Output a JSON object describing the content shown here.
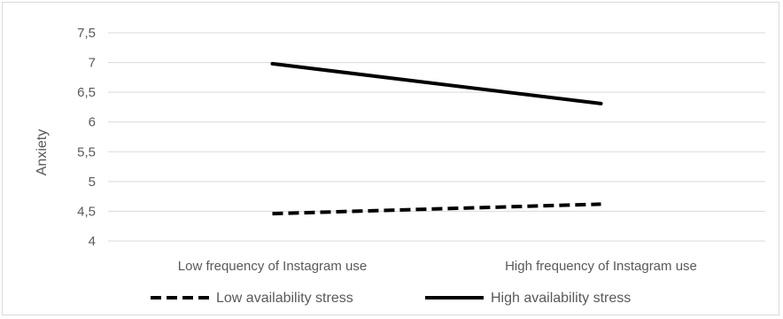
{
  "chart_data": {
    "type": "line",
    "title": "",
    "xlabel": "",
    "ylabel": "Anxiety",
    "categories": [
      "Low frequency of Instagram use",
      "High frequency of Instagram use"
    ],
    "ylim": [
      4,
      7.5
    ],
    "yticks": [
      "4",
      "4,5",
      "5",
      "5,5",
      "6",
      "6,5",
      "7",
      "7,5"
    ],
    "ytick_values": [
      4,
      4.5,
      5,
      5.5,
      6,
      6.5,
      7,
      7.5
    ],
    "grid": true,
    "legend_position": "bottom",
    "series": [
      {
        "name": "Low availability stress",
        "values": [
          4.46,
          4.62
        ],
        "style": "dashed",
        "color": "#000000"
      },
      {
        "name": "High availability stress",
        "values": [
          6.98,
          6.31
        ],
        "style": "solid",
        "color": "#000000"
      }
    ]
  }
}
